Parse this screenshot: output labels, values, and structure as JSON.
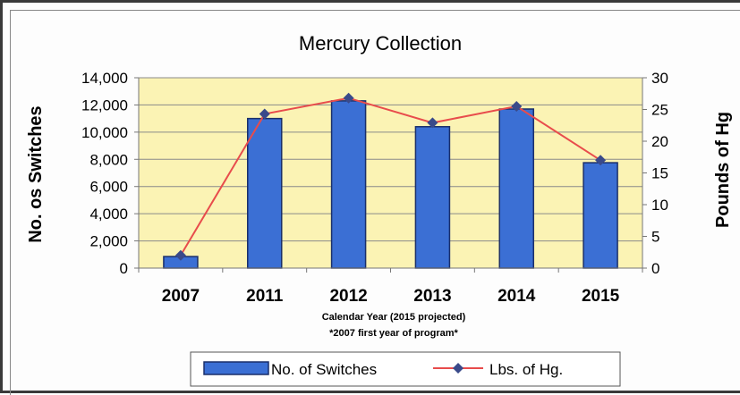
{
  "chart_data": {
    "type": "bar",
    "title": "Mercury Collection",
    "categories": [
      "2007",
      "2011",
      "2012",
      "2013",
      "2014",
      "2015"
    ],
    "xlabel": "Calendar Year (2015 projected)",
    "xnote": "*2007 first year of program*",
    "ylabel": "No. os Switches",
    "y2label": "Pounds of Hg",
    "ylim": [
      0,
      14000
    ],
    "y2lim": [
      0,
      30
    ],
    "yticks": [
      "0",
      "2,000",
      "4,000",
      "6,000",
      "8,000",
      "10,000",
      "12,000",
      "14,000"
    ],
    "y2ticks": [
      "0",
      "5",
      "10",
      "15",
      "20",
      "25",
      "30"
    ],
    "series": [
      {
        "name": "No. of Switches",
        "type": "bar",
        "axis": "left",
        "color": "#3b6fd4",
        "values": [
          850,
          11000,
          12300,
          10400,
          11700,
          7750
        ]
      },
      {
        "name": "Lbs. of Hg.",
        "type": "line",
        "axis": "right",
        "color": "#e84c4c",
        "marker_color": "#3a4a8a",
        "values": [
          2,
          24.3,
          26.8,
          22.9,
          25.5,
          17
        ]
      }
    ],
    "plot_background": "#fbf3b4",
    "grid": true,
    "legend_position": "bottom"
  }
}
